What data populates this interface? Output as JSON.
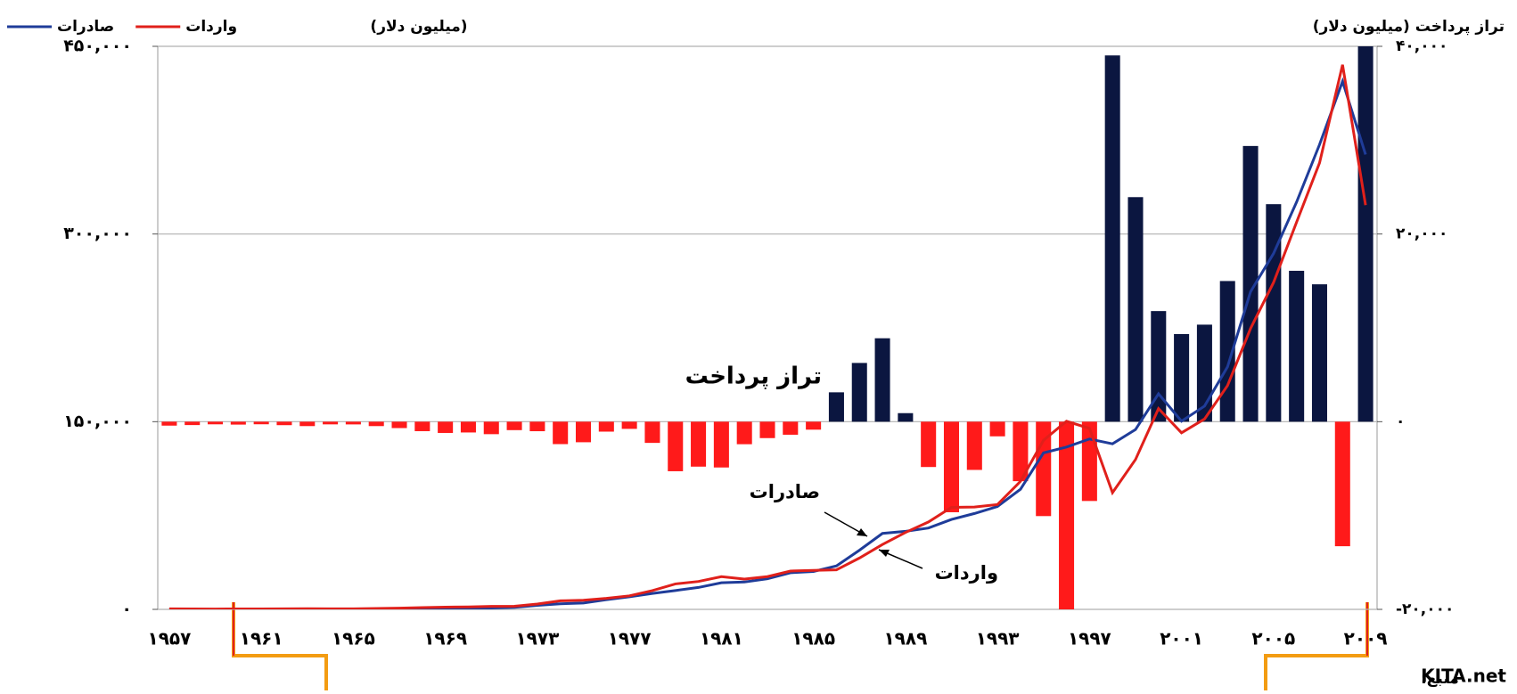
{
  "chart_data": {
    "type": "combo",
    "ylabel": "(میلیون دلار)",
    "y2label": "تراز پرداخت (میلیون دلار)",
    "source_prefix": "منبع:",
    "source_name": "KITA.net",
    "categories": [
      "۱۹۵۷",
      null,
      null,
      null,
      "۱۹۶۱",
      null,
      null,
      null,
      "۱۹۶۵",
      null,
      null,
      null,
      "۱۹۶۹",
      null,
      null,
      null,
      "۱۹۷۳",
      null,
      null,
      null,
      "۱۹۷۷",
      null,
      null,
      null,
      "۱۹۸۱",
      null,
      null,
      null,
      "۱۹۸۵",
      null,
      null,
      null,
      "۱۹۸۹",
      null,
      null,
      null,
      "۱۹۹۳",
      null,
      null,
      null,
      "۱۹۹۷",
      null,
      null,
      null,
      "۲۰۰۱",
      null,
      null,
      null,
      "۲۰۰۵",
      null,
      null,
      null,
      "۲۰۰۹"
    ],
    "ylim": [
      0,
      450000
    ],
    "yticks": [
      {
        "value": 0,
        "label": "۰"
      },
      {
        "value": 150000,
        "label": "۱۵۰,۰۰۰"
      },
      {
        "value": 300000,
        "label": "۳۰۰,۰۰۰"
      },
      {
        "value": 450000,
        "label": "۴۵۰,۰۰۰"
      }
    ],
    "y2lim": [
      -20000,
      40000
    ],
    "y2ticks": [
      {
        "value": -20000,
        "label": "-۲۰,۰۰۰"
      },
      {
        "value": 0,
        "label": "۰"
      },
      {
        "value": 20000,
        "label": "۲۰,۰۰۰"
      },
      {
        "value": 40000,
        "label": "۴۰,۰۰۰"
      }
    ],
    "grid": true,
    "series": [
      {
        "name": "تراز پرداخت",
        "type": "bar",
        "axis": "y2",
        "color": "#0b1640",
        "negative_color": "#ff1a1a",
        "values": [
          -420,
          -360,
          -280,
          -310,
          -275,
          -370,
          -470,
          -285,
          -290,
          -470,
          -680,
          -1010,
          -1200,
          -1150,
          -1330,
          -900,
          -1015,
          -2390,
          -2190,
          -1060,
          -765,
          -2260,
          -5280,
          -4790,
          -4880,
          -2400,
          -1750,
          -1390,
          -850,
          3130,
          6260,
          8890,
          910,
          -4830,
          -9650,
          -5140,
          -1560,
          -6340,
          -10060,
          -20620,
          -8450,
          39030,
          23930,
          11790,
          9340,
          10340,
          14990,
          29380,
          23180,
          16080,
          14640,
          -13270,
          40450
        ]
      },
      {
        "name": "صادرات",
        "type": "line",
        "axis": "y",
        "color": "#1f3c99",
        "values": [
          22,
          17,
          20,
          33,
          41,
          55,
          87,
          119,
          175,
          250,
          320,
          455,
          623,
          835,
          1068,
          1624,
          3225,
          4460,
          5081,
          7715,
          10046,
          12711,
          15055,
          17505,
          21254,
          21853,
          24445,
          29245,
          30283,
          34715,
          47281,
          60696,
          62377,
          65016,
          71870,
          76632,
          82236,
          96013,
          125058,
          129715,
          136164,
          132313,
          143685,
          172268,
          150439,
          162471,
          193817,
          253845,
          284419,
          325465,
          371489,
          422007,
          363534
        ]
      },
      {
        "name": "واردات",
        "type": "line",
        "axis": "y",
        "color": "#e0201b",
        "values": [
          442,
          378,
          304,
          344,
          316,
          422,
          560,
          404,
          463,
          716,
          996,
          1463,
          1824,
          1984,
          2394,
          2522,
          4240,
          6852,
          7274,
          8774,
          10811,
          14972,
          20339,
          22292,
          26131,
          24251,
          26192,
          30631,
          31136,
          31584,
          41020,
          51811,
          61465,
          69844,
          81525,
          81775,
          83800,
          102348,
          135119,
          150339,
          144616,
          93282,
          119752,
          160481,
          141098,
          152126,
          178827,
          224463,
          261238,
          309383,
          356846,
          435275,
          323085
        ]
      }
    ]
  }
}
